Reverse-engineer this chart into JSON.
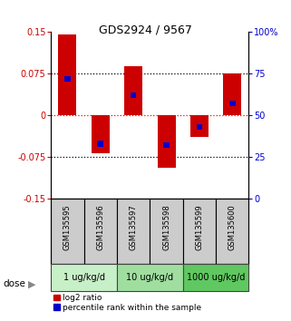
{
  "title": "GDS2924 / 9567",
  "samples": [
    "GSM135595",
    "GSM135596",
    "GSM135597",
    "GSM135598",
    "GSM135599",
    "GSM135600"
  ],
  "log2_ratios": [
    0.145,
    -0.068,
    0.088,
    -0.095,
    -0.038,
    0.075
  ],
  "percentile_ranks": [
    72,
    33,
    62,
    32,
    43,
    57
  ],
  "dose_groups": [
    {
      "label": "1 ug/kg/d",
      "samples": [
        0,
        1
      ],
      "color": "#c8f0c8"
    },
    {
      "label": "10 ug/kg/d",
      "samples": [
        2,
        3
      ],
      "color": "#a0dea0"
    },
    {
      "label": "1000 ug/kg/d",
      "samples": [
        4,
        5
      ],
      "color": "#60c860"
    }
  ],
  "ylim": [
    -0.15,
    0.15
  ],
  "yticks_left": [
    -0.15,
    -0.075,
    0,
    0.075,
    0.15
  ],
  "yticks_right": [
    0,
    25,
    50,
    75,
    100
  ],
  "ytick_labels_left": [
    "-0.15",
    "-0.075",
    "0",
    "0.075",
    "0.15"
  ],
  "ytick_labels_right": [
    "0",
    "25",
    "50",
    "75",
    "100%"
  ],
  "hlines_black": [
    -0.075,
    0.075
  ],
  "hline_red": 0,
  "bar_color_red": "#cc0000",
  "bar_color_blue": "#0000cc",
  "bar_width": 0.55,
  "blue_bar_width": 0.18,
  "blue_bar_height": 0.01,
  "left_tick_color": "#cc0000",
  "right_tick_color": "#0000cc",
  "legend_red": "log2 ratio",
  "legend_blue": "percentile rank within the sample",
  "dose_label": "dose",
  "background_color": "#ffffff",
  "plot_bg": "#ffffff",
  "sample_bg": "#cccccc",
  "title_fontsize": 9,
  "tick_fontsize": 7,
  "sample_fontsize": 6,
  "dose_fontsize": 7,
  "legend_fontsize": 6.5
}
